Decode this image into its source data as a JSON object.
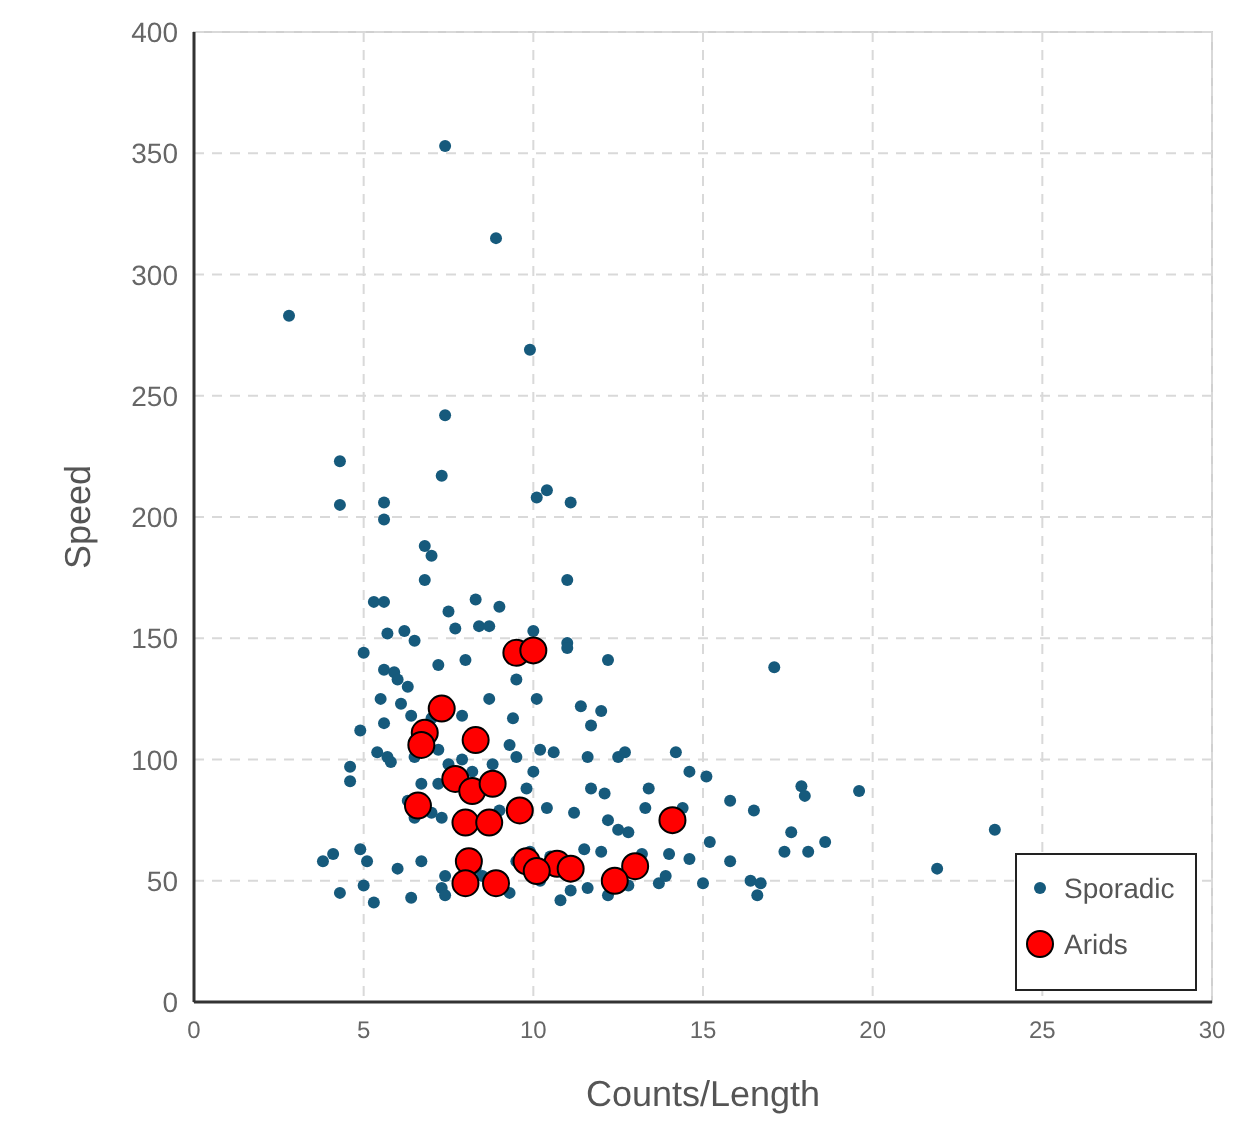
{
  "chart_data": {
    "type": "scatter",
    "xlabel": "Counts/Length",
    "ylabel": "Speed",
    "xlim": [
      0,
      30
    ],
    "xticks": [
      0,
      5,
      10,
      15,
      20,
      25,
      30
    ],
    "ylim": [
      0,
      400
    ],
    "yticks": [
      0,
      50,
      100,
      150,
      200,
      250,
      300,
      350,
      400
    ],
    "grid": true,
    "legend": "bottom right",
    "marker": "circle",
    "series": [
      {
        "name": "Sporadic",
        "color": "#165a7c",
        "x": [
          2.8,
          7.4,
          8.9,
          9.9,
          7.4,
          4.3,
          7.3,
          10.4,
          10.1,
          11.1,
          4.3,
          5.6,
          5.6,
          6.8,
          7.0,
          6.8,
          11.0,
          5.3,
          5.6,
          8.3,
          7.5,
          8.4,
          8.7,
          9.0,
          10.0,
          6.2,
          7.7,
          5.7,
          11.0,
          11.0,
          5.0,
          6.5,
          8.0,
          12.2,
          17.1,
          7.2,
          5.6,
          5.9,
          6.0,
          6.3,
          9.5,
          8.7,
          10.1,
          5.5,
          6.1,
          7.9,
          6.4,
          11.4,
          12.0,
          4.9,
          5.6,
          7.0,
          9.4,
          11.7,
          5.7,
          5.8,
          6.5,
          4.6,
          4.6,
          5.4,
          7.2,
          7.9,
          8.8,
          9.3,
          9.5,
          10.2,
          10.6,
          11.6,
          12.5,
          12.7,
          14.2,
          14.6,
          15.1,
          17.9,
          18.0,
          19.6,
          7.5,
          7.2,
          8.2,
          10.0,
          9.8,
          11.7,
          12.1,
          13.4,
          13.3,
          14.4,
          15.8,
          6.3,
          6.7,
          6.5,
          7.0,
          7.3,
          9.0,
          10.4,
          11.2,
          12.2,
          12.5,
          12.8,
          15.2,
          16.5,
          17.6,
          18.6,
          18.1,
          17.4,
          23.6,
          4.1,
          3.8,
          4.9,
          5.1,
          6.0,
          6.7,
          7.4,
          8.3,
          9.5,
          9.9,
          10.5,
          11.5,
          12.0,
          13.2,
          14.0,
          14.6,
          15.8,
          16.4,
          16.7,
          16.6,
          21.9,
          4.3,
          5.0,
          5.3,
          6.4,
          7.3,
          7.4,
          9.3,
          10.8,
          11.1,
          11.6,
          12.8,
          13.7,
          13.9,
          15.0,
          12.2,
          10.2,
          8.5
        ],
        "values": [
          283,
          353,
          315,
          269,
          242,
          223,
          217,
          211,
          208,
          206,
          205,
          206,
          199,
          188,
          184,
          174,
          174,
          165,
          165,
          166,
          161,
          155,
          155,
          163,
          153,
          153,
          154,
          152,
          148,
          146,
          144,
          149,
          141,
          141,
          138,
          139,
          137,
          136,
          133,
          130,
          133,
          125,
          125,
          125,
          123,
          118,
          118,
          122,
          120,
          112,
          115,
          117,
          117,
          114,
          101,
          99,
          101,
          97,
          91,
          103,
          104,
          100,
          98,
          106,
          101,
          104,
          103,
          101,
          101,
          103,
          103,
          95,
          93,
          89,
          85,
          87,
          98,
          90,
          95,
          95,
          88,
          88,
          86,
          88,
          80,
          80,
          83,
          83,
          90,
          76,
          78,
          76,
          79,
          80,
          78,
          75,
          71,
          70,
          66,
          79,
          70,
          66,
          62,
          62,
          71,
          61,
          58,
          63,
          58,
          55,
          58,
          52,
          55,
          58,
          62,
          60,
          63,
          62,
          61,
          61,
          59,
          58,
          50,
          49,
          44,
          55,
          45,
          48,
          41,
          43,
          47,
          44,
          45,
          42,
          46,
          47,
          48,
          49,
          52,
          49,
          44,
          50,
          52
        ]
      },
      {
        "name": "Arids",
        "color": "#ff0000",
        "x": [
          9.5,
          10.0,
          7.3,
          6.8,
          6.7,
          8.3,
          7.7,
          8.2,
          8.8,
          9.6,
          6.6,
          8.0,
          8.7,
          14.1,
          8.1,
          9.8,
          10.7,
          11.1,
          10.1,
          13.0,
          12.4,
          8.0,
          8.9
        ],
        "values": [
          144,
          145,
          121,
          111,
          106,
          108,
          92,
          87,
          90,
          79,
          81,
          74,
          74,
          75,
          58,
          58,
          57,
          55,
          54,
          56,
          50,
          49,
          49
        ]
      }
    ]
  }
}
